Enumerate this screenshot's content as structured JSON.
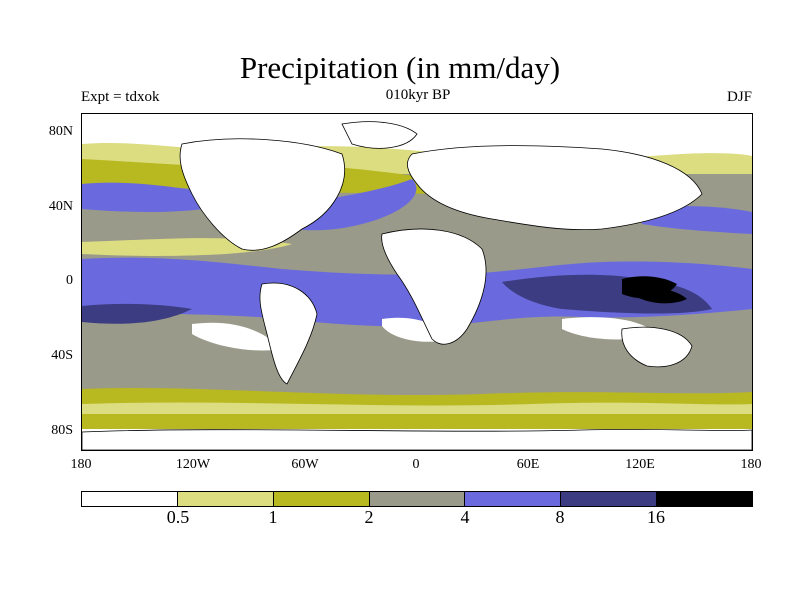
{
  "title": "Precipitation (in mm/day)",
  "subtitle_left": "Expt = tdxok",
  "subtitle_center": "010kyr BP",
  "subtitle_right": "DJF",
  "y_ticks": [
    "80N",
    "40N",
    "0",
    "40S",
    "80S"
  ],
  "x_ticks": [
    "180",
    "120W",
    "60W",
    "0",
    "60E",
    "120E",
    "180"
  ],
  "colorbar": {
    "labels": [
      "0.5",
      "1",
      "2",
      "4",
      "8",
      "16"
    ],
    "colors": [
      "#ffffff",
      "#dcdc80",
      "#b8b820",
      "#9a9a8a",
      "#6a6ade",
      "#3c3c82",
      "#000000"
    ]
  },
  "legend_colors": {
    "lt_half": "#ffffff",
    "half_to_1": "#dcdc80",
    "1_to_2": "#b8b820",
    "2_to_4": "#9a9a8a",
    "4_to_8": "#6a6ade",
    "8_to_16": "#3c3c82",
    "gt_16": "#000000"
  }
}
